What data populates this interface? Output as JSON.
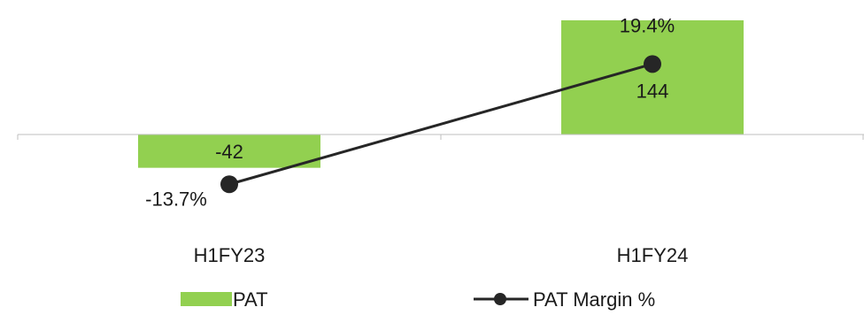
{
  "chart_data": {
    "type": "bar",
    "categories": [
      "H1FY23",
      "H1FY24"
    ],
    "series": [
      {
        "name": "PAT",
        "type": "bar",
        "axis": "primary",
        "values": [
          -42,
          144
        ],
        "labels": [
          "-42",
          "144"
        ],
        "color": "#92D050"
      },
      {
        "name": "PAT Margin %",
        "type": "line",
        "axis": "secondary",
        "values": [
          -13.7,
          19.4
        ],
        "labels": [
          "-13.7%",
          "19.4%"
        ],
        "color": "#262626"
      }
    ],
    "ylim_primary": [
      -78,
      164
    ],
    "ylim_secondary": [
      -35.5,
      35.8
    ],
    "grid": false,
    "legend_position": "bottom"
  }
}
